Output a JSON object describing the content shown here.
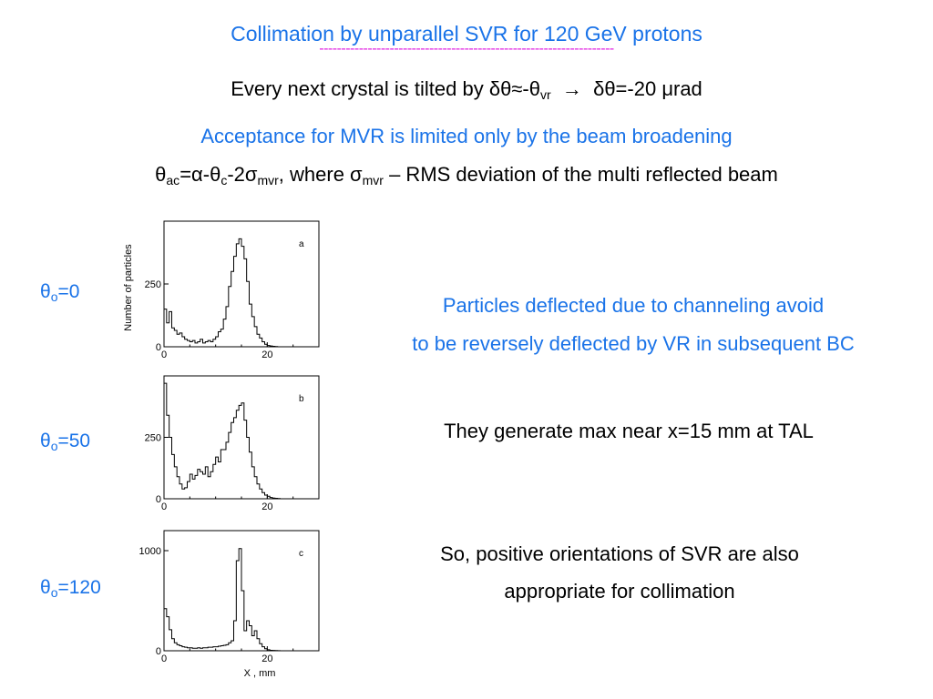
{
  "title": "Collimation by unparallel SVR for 120 GeV protons",
  "title_underline": "-------------------------------------------------------------------",
  "line1": {
    "pre": "Every next crystal is tilted by δθ≈-θ",
    "sub": "vr",
    "post": "  →  δθ=-20 μrad"
  },
  "line2": "Acceptance for MVR is limited only by the beam broadening",
  "line3": {
    "t1": "θ",
    "s1": "ac",
    "t2": "=α-θ",
    "s2": "c",
    "t3": "-2σ",
    "s3": "mvr",
    "t4": ", where σ",
    "s4": "mvr",
    "t5": " – RMS deviation of the multi reflected beam"
  },
  "labels": [
    {
      "theta": "θ",
      "sub": "o",
      "value": "=0"
    },
    {
      "theta": "θ",
      "sub": "o",
      "value": "=50"
    },
    {
      "theta": "θ",
      "sub": "o",
      "value": "=120"
    }
  ],
  "notes": {
    "n1a": "Particles deflected due to channeling avoid",
    "n1b": "to be reversely deflected by VR in subsequent BC",
    "n2": "They generate max near x=15 mm at TAL",
    "n3a": "So, positive orientations of SVR are also",
    "n3b": "appropriate for collimation"
  },
  "colors": {
    "accent_blue": "#1a73e8",
    "dash_magenta": "#e020e0"
  },
  "chart_data": [
    {
      "type": "line",
      "panel_label": "a",
      "ylabel": "Number of particles",
      "xlabel": "",
      "xlim": [
        0,
        30
      ],
      "ylim": [
        0,
        500
      ],
      "x_ticks": [
        "0",
        "20"
      ],
      "y_ticks": [
        "0",
        "250"
      ],
      "x": [
        0,
        0.5,
        1,
        1.5,
        2,
        2.5,
        3,
        3.5,
        4,
        4.5,
        5,
        5.5,
        6,
        6.5,
        7,
        7.5,
        8,
        8.5,
        9,
        9.5,
        10,
        10.5,
        11,
        11.5,
        12,
        12.5,
        13,
        13.5,
        14,
        14.5,
        15,
        15.5,
        16,
        16.5,
        17,
        17.5,
        18,
        18.5,
        19,
        19.5,
        20,
        20.5,
        21,
        21.5,
        22,
        22.5,
        23,
        23.5,
        24,
        25,
        26,
        27,
        28,
        29,
        30
      ],
      "values": [
        150,
        95,
        140,
        75,
        65,
        50,
        55,
        40,
        30,
        25,
        20,
        25,
        15,
        20,
        30,
        15,
        20,
        25,
        20,
        30,
        40,
        60,
        70,
        110,
        160,
        240,
        300,
        360,
        410,
        430,
        400,
        350,
        260,
        170,
        120,
        80,
        50,
        35,
        20,
        10,
        5,
        3,
        2,
        1,
        0,
        0,
        0,
        0,
        0,
        0,
        0,
        0,
        0,
        0,
        0
      ]
    },
    {
      "type": "line",
      "panel_label": "b",
      "ylabel": "",
      "xlabel": "",
      "xlim": [
        0,
        30
      ],
      "ylim": [
        0,
        500
      ],
      "x_ticks": [
        "0",
        "20"
      ],
      "y_ticks": [
        "0",
        "250"
      ],
      "x": [
        0,
        0.5,
        1,
        1.5,
        2,
        2.5,
        3,
        3.5,
        4,
        4.5,
        5,
        5.5,
        6,
        6.5,
        7,
        7.5,
        8,
        8.5,
        9,
        9.5,
        10,
        10.5,
        11,
        11.5,
        12,
        12.5,
        13,
        13.5,
        14,
        14.5,
        15,
        15.5,
        16,
        16.5,
        17,
        17.5,
        18,
        18.5,
        19,
        19.5,
        20,
        20.5,
        21,
        21.5,
        22,
        22.5,
        23,
        23.5,
        24,
        25,
        26,
        27,
        28,
        29,
        30
      ],
      "values": [
        470,
        340,
        250,
        180,
        130,
        90,
        60,
        40,
        45,
        70,
        100,
        80,
        95,
        120,
        110,
        100,
        130,
        90,
        110,
        140,
        170,
        150,
        200,
        200,
        230,
        270,
        310,
        330,
        360,
        380,
        390,
        320,
        250,
        190,
        130,
        90,
        60,
        40,
        25,
        15,
        10,
        5,
        3,
        2,
        1,
        0,
        0,
        0,
        0,
        0,
        0,
        0,
        0,
        0,
        0
      ]
    },
    {
      "type": "line",
      "panel_label": "c",
      "ylabel": "",
      "xlabel": "X , mm",
      "xlim": [
        0,
        30
      ],
      "ylim": [
        0,
        1200
      ],
      "x_ticks": [
        "0",
        "20"
      ],
      "y_ticks": [
        "0",
        "1000"
      ],
      "x": [
        0,
        0.5,
        1,
        1.5,
        2,
        2.5,
        3,
        3.5,
        4,
        4.5,
        5,
        5.5,
        6,
        6.5,
        7,
        7.5,
        8,
        8.5,
        9,
        9.5,
        10,
        10.5,
        11,
        11.5,
        12,
        12.5,
        13,
        13.5,
        14,
        14.5,
        15,
        15.5,
        16,
        16.5,
        17,
        17.5,
        18,
        18.5,
        19,
        19.5,
        20,
        20.5,
        21,
        21.5,
        22,
        22.5,
        23,
        23.5,
        24,
        25,
        26,
        27,
        28,
        29,
        30
      ],
      "values": [
        420,
        340,
        210,
        120,
        80,
        60,
        50,
        40,
        35,
        30,
        30,
        25,
        25,
        30,
        25,
        30,
        30,
        35,
        35,
        40,
        40,
        45,
        50,
        55,
        60,
        80,
        100,
        300,
        900,
        1020,
        600,
        200,
        300,
        250,
        150,
        200,
        120,
        70,
        40,
        20,
        10,
        5,
        3,
        2,
        1,
        0,
        0,
        0,
        0,
        0,
        0,
        0,
        0,
        0,
        0
      ]
    }
  ]
}
